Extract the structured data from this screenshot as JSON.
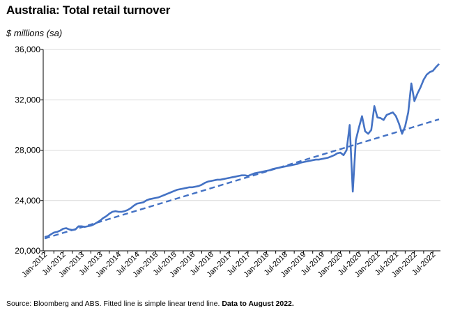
{
  "title": "Australia: Total retail turnover",
  "units_label": "$ millions (sa)",
  "source": {
    "plain": "Source: Bloomberg and ABS.  Fitted line is simple linear trend line.",
    "bold": "Data to August 2022."
  },
  "colors": {
    "line": "#4472C4",
    "grid": "#D9D9D9",
    "axis": "#000000"
  },
  "chart_data": {
    "type": "line",
    "title": "Australia: Total retail turnover",
    "ylabel": "$ millions (sa)",
    "xlabel": "",
    "ylim": [
      20000,
      36000
    ],
    "yticks": [
      20000,
      24000,
      28000,
      32000,
      36000
    ],
    "ytick_labels": [
      "20,000",
      "24,000",
      "28,000",
      "32,000",
      "36,000"
    ],
    "grid": "horizontal",
    "x_start": "Jan-2012",
    "x_end": "Aug-2022",
    "xtick_labels": [
      "Jan-2012",
      "Jul-2012",
      "Jan-2013",
      "Jul-2013",
      "Jan-2014",
      "Jul-2014",
      "Jan-2015",
      "Jul-2015",
      "Jan-2016",
      "Jul-2016",
      "Jan-2017",
      "Jul-2017",
      "Jan-2018",
      "Jul-2018",
      "Jan-2019",
      "Jul-2019",
      "Jan-2020",
      "Jul-2020",
      "Jan-2021",
      "Jul-2021",
      "Jan-2022",
      "Jul-2022"
    ],
    "series": [
      {
        "style": "solid",
        "values": [
          21100,
          21150,
          21300,
          21450,
          21500,
          21600,
          21750,
          21800,
          21700,
          21650,
          21700,
          21950,
          21950,
          21900,
          21950,
          22000,
          22100,
          22250,
          22400,
          22600,
          22750,
          22950,
          23100,
          23150,
          23100,
          23100,
          23150,
          23250,
          23400,
          23600,
          23750,
          23800,
          23850,
          24000,
          24100,
          24150,
          24200,
          24250,
          24350,
          24450,
          24550,
          24650,
          24750,
          24850,
          24900,
          24950,
          25000,
          25050,
          25050,
          25100,
          25150,
          25250,
          25400,
          25500,
          25550,
          25600,
          25650,
          25650,
          25700,
          25750,
          25800,
          25850,
          25900,
          25950,
          26000,
          26000,
          25950,
          26050,
          26150,
          26200,
          26250,
          26300,
          26350,
          26400,
          26500,
          26550,
          26600,
          26650,
          26700,
          26750,
          26800,
          26850,
          26900,
          27000,
          27050,
          27100,
          27150,
          27200,
          27250,
          27250,
          27300,
          27350,
          27400,
          27500,
          27600,
          27750,
          27800,
          27600,
          28000,
          30000,
          24700,
          28800,
          29800,
          30700,
          29500,
          29300,
          29600,
          31500,
          30600,
          30550,
          30400,
          30800,
          30900,
          31000,
          30700,
          30100,
          29300,
          29900,
          31000,
          33300,
          31900,
          32500,
          33000,
          33600,
          34000,
          34200,
          34300,
          34600,
          34850
        ]
      },
      {
        "style": "dashed",
        "label": "Fitted line is simple linear trend line",
        "start": 20980,
        "end": 30450
      }
    ]
  }
}
